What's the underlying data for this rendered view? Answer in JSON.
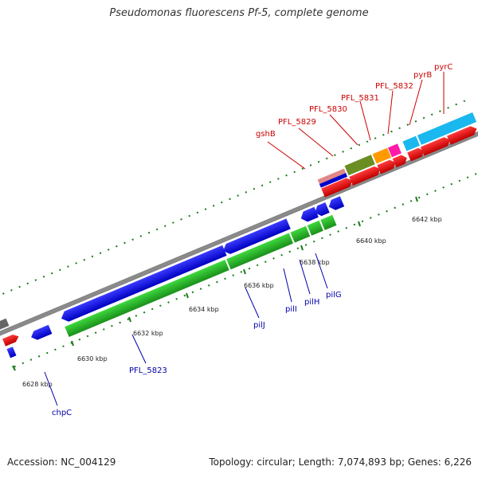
{
  "title": "Pseudomonas fluorescens Pf-5, complete genome",
  "footer": {
    "accession": "Accession: NC_004129",
    "summary": "Topology: circular; Length: 7,074,893 bp; Genes: 6,226"
  },
  "scale": {
    "kbp_ticks": [
      "6628 kbp",
      "6630 kbp",
      "6632 kbp",
      "6634 kbp",
      "6636 kbp",
      "6638 kbp",
      "6640 kbp",
      "6642 kbp"
    ]
  },
  "colors": {
    "backbone": "#8a8a8a",
    "forward_label": "#cc0000",
    "reverse_label": "#0000aa",
    "tick": "#1a7a1a"
  },
  "genes": {
    "forward_labels": [
      "gshB",
      "PFL_5829",
      "PFL_5830",
      "PFL_5831",
      "PFL_5832",
      "pyrB",
      "pyrC"
    ],
    "reverse_labels": [
      "chpC",
      "PFL_5823",
      "pilJ",
      "pilI",
      "pilH",
      "pilG"
    ]
  }
}
